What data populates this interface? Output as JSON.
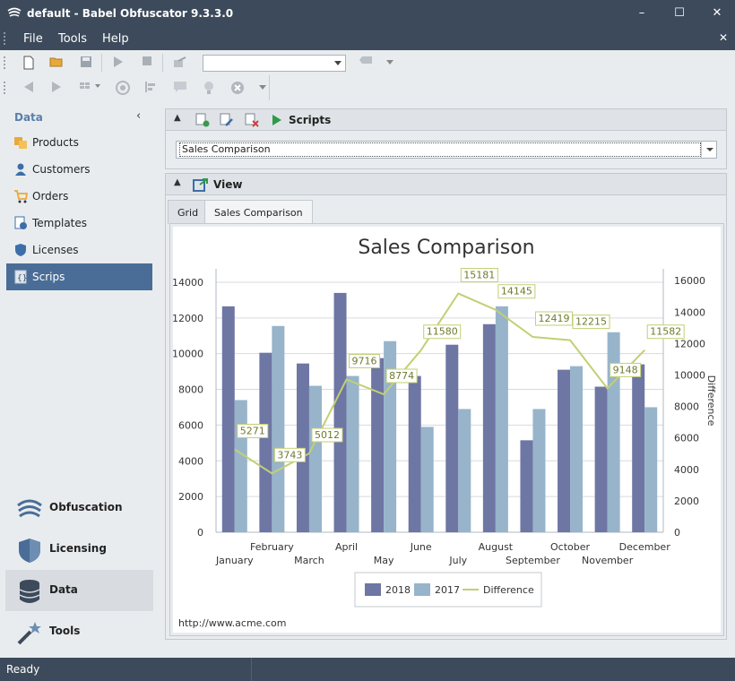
{
  "window": {
    "title": "default -  Babel Obfuscator 9.3.3.0"
  },
  "menu": [
    {
      "label": "File"
    },
    {
      "label": "Tools"
    },
    {
      "label": "Help"
    }
  ],
  "toolbar": {
    "combo_value": ""
  },
  "sidebar": {
    "header": "Data",
    "items": [
      {
        "label": "Products",
        "icon": "products-icon"
      },
      {
        "label": "Customers",
        "icon": "customers-icon"
      },
      {
        "label": "Orders",
        "icon": "orders-icon"
      },
      {
        "label": "Templates",
        "icon": "templates-icon"
      },
      {
        "label": "Licenses",
        "icon": "licenses-icon"
      },
      {
        "label": "Scrips",
        "icon": "scrips-icon",
        "selected": true
      }
    ],
    "nav": [
      {
        "label": "Obfuscation",
        "icon": "obfuscation-icon"
      },
      {
        "label": "Licensing",
        "icon": "licensing-icon"
      },
      {
        "label": "Data",
        "icon": "data-icon",
        "active": true
      },
      {
        "label": "Tools",
        "icon": "tools-icon"
      }
    ]
  },
  "scripts_panel": {
    "title": "Scripts",
    "selected_script": "Sales Comparison"
  },
  "view_panel": {
    "title": "View",
    "tabs": [
      {
        "label": "Grid"
      },
      {
        "label": "Sales Comparison",
        "active": true
      }
    ]
  },
  "chart_data": {
    "type": "bar",
    "title": "Sales Comparison",
    "categories": [
      "January",
      "February",
      "March",
      "April",
      "May",
      "June",
      "July",
      "August",
      "September",
      "October",
      "November",
      "December"
    ],
    "series": [
      {
        "name": "2018",
        "type": "bar",
        "color": "#6e76a4",
        "values": [
          12650,
          10050,
          9450,
          13400,
          9750,
          8750,
          10500,
          11650,
          5150,
          9100,
          8150,
          9400
        ]
      },
      {
        "name": "2017",
        "type": "bar",
        "color": "#97b4ca",
        "values": [
          7400,
          11550,
          8200,
          8750,
          10700,
          5900,
          6900,
          12650,
          6900,
          9300,
          11200,
          7000
        ]
      },
      {
        "name": "Difference",
        "type": "line",
        "axis": "secondary",
        "color": "#c3cf73",
        "values": [
          5271,
          3743,
          5012,
          9716,
          8774,
          11580,
          15181,
          14145,
          12419,
          12215,
          9148,
          11582
        ]
      }
    ],
    "data_labels": [
      "5271",
      "3743",
      "5012",
      "9716",
      "8774",
      "11580",
      "15181",
      "14145",
      "12419",
      "12215",
      "9148",
      "11582"
    ],
    "y_ticks": [
      "0",
      "2000",
      "4000",
      "6000",
      "8000",
      "10000",
      "12000",
      "14000"
    ],
    "y2_ticks": [
      "0",
      "2000",
      "4000",
      "6000",
      "8000",
      "10000",
      "12000",
      "14000",
      "16000"
    ],
    "ylim": [
      0,
      14750
    ],
    "y2lim": [
      0,
      16750
    ],
    "y2label": "Difference",
    "legend": [
      {
        "label": "2018",
        "color": "#6e76a4"
      },
      {
        "label": "2017",
        "color": "#97b4ca"
      },
      {
        "label": "Difference",
        "color": "#c3cf73"
      }
    ],
    "legend_position": "bottom-center",
    "footer": "http://www.acme.com",
    "grid": true
  },
  "status": {
    "text": "Ready"
  }
}
